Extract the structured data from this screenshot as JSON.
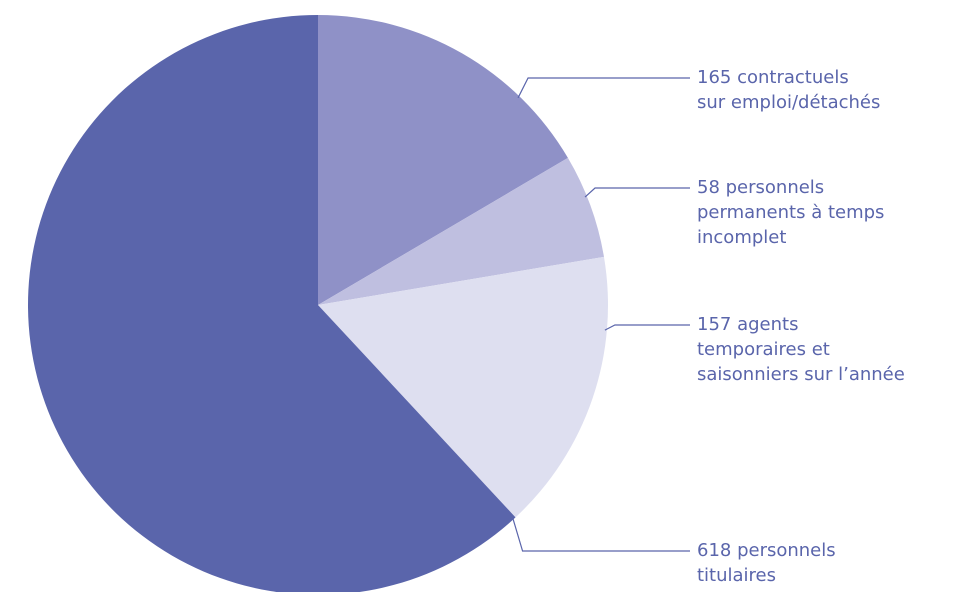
{
  "chart_data": {
    "type": "pie",
    "categories": [
      "165 contractuels\nsur emploi/détachés",
      "58 personnels\npermanents à temps\nincomplet",
      "157 agents\ntemporaires et\nsaisonniers sur l’année",
      "618 personnels\ntitulaires"
    ],
    "values": [
      165,
      58,
      157,
      618
    ],
    "colors": [
      "#8f91c7",
      "#bfbfe0",
      "#dedff0",
      "#5a65ab"
    ]
  }
}
